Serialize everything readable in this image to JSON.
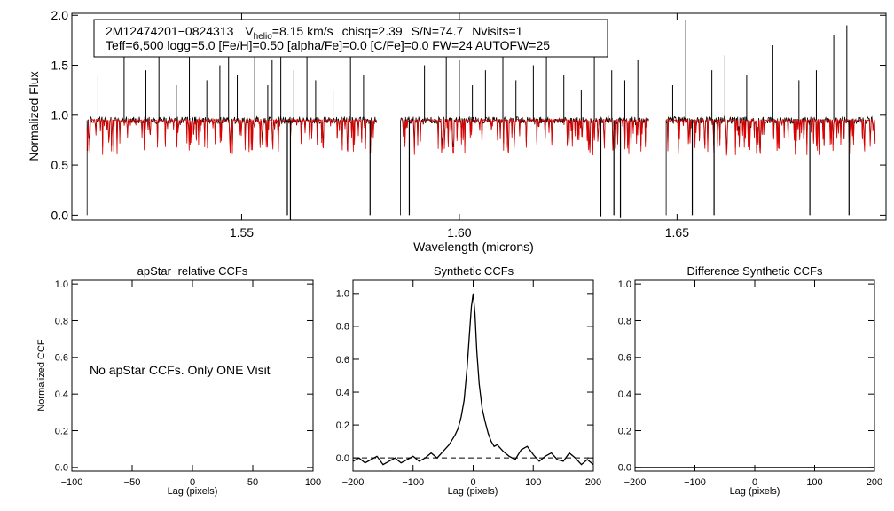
{
  "figure_caption": "",
  "chart_data": [
    {
      "id": "spectrum",
      "type": "line",
      "xlabel": "Wavelength (microns)",
      "ylabel": "Normalized Flux",
      "xlim": [
        1.511,
        1.698
      ],
      "ylim": [
        -0.05,
        2.02
      ],
      "xticks": [
        1.55,
        1.6,
        1.65
      ],
      "xtick_labels": [
        "1.55",
        "1.60",
        "1.65"
      ],
      "yticks": [
        0.0,
        0.5,
        1.0,
        1.5,
        2.0
      ],
      "ytick_labels": [
        "0.0",
        "0.5",
        "1.0",
        "1.5",
        "2.0"
      ],
      "chips": [
        [
          1.5145,
          1.581
        ],
        [
          1.5865,
          1.6435
        ],
        [
          1.6475,
          1.6955
        ]
      ],
      "annotation": {
        "star_id": "2M12474201−0824313",
        "vhelio_label": "V",
        "vhelio_subscript": "helio",
        "vhelio_value": "=8.15 km/s",
        "chisq": "chisq=2.39",
        "snr": "S/N=74.7",
        "nvisits": "Nvisits=1",
        "line2": "Teff=6,500 logg=5.0 [Fe/H]=0.50 [alpha/Fe]=0.0 [C/Fe]=0.0 FW=24 AUTOFW=25"
      },
      "series": [
        {
          "name": "observed",
          "color": "#000000",
          "continuum": 0.95,
          "noise": 0.035,
          "spikes_up": [
            1.517,
            1.523,
            1.528,
            1.531,
            1.535,
            1.538,
            1.542,
            1.545,
            1.547,
            1.549,
            1.553,
            1.556,
            1.557,
            1.559,
            1.562,
            1.565,
            1.567,
            1.571,
            1.575,
            1.578,
            1.592,
            1.597,
            1.6,
            1.603,
            1.606,
            1.61,
            1.613,
            1.617,
            1.62,
            1.624,
            1.628,
            1.631,
            1.635,
            1.638,
            1.641,
            1.649,
            1.652,
            1.658,
            1.661,
            1.666,
            1.672,
            1.678,
            1.682,
            1.686,
            1.689
          ],
          "spikes_up_height": [
            1.4,
            1.8,
            1.45,
            1.6,
            1.3,
            1.75,
            1.35,
            1.5,
            1.8,
            1.4,
            1.65,
            1.3,
            1.55,
            1.7,
            1.45,
            1.9,
            1.35,
            1.25,
            1.6,
            1.4,
            1.5,
            1.85,
            1.55,
            1.3,
            1.45,
            1.7,
            1.35,
            1.5,
            1.95,
            1.4,
            1.25,
            1.6,
            1.45,
            1.35,
            1.55,
            1.3,
            1.95,
            1.45,
            1.6,
            1.4,
            1.7,
            1.35,
            1.45,
            1.8,
            1.9
          ],
          "spikes_down": [
            1.5605,
            1.5612,
            1.5795,
            1.5885,
            1.6325,
            1.6355,
            1.637,
            1.6535,
            1.6585,
            1.6805,
            1.6895
          ],
          "spikes_down_depth": [
            0.0,
            -0.05,
            0.0,
            0.0,
            -0.02,
            0.0,
            -0.03,
            0.0,
            0.0,
            0.0,
            0.0
          ]
        },
        {
          "name": "synthetic",
          "color": "#e00000",
          "continuum": 0.95
        }
      ]
    },
    {
      "id": "apstar_ccf",
      "type": "line",
      "title": "apStar−relative CCFs",
      "xlabel": "Lag (pixels)",
      "ylabel": "Normalized CCF",
      "xlim": [
        -100,
        100
      ],
      "ylim": [
        -0.02,
        1.02
      ],
      "xticks": [
        -100,
        -50,
        0,
        50,
        100
      ],
      "xtick_labels": [
        "−100",
        "−50",
        "0",
        "50",
        "100"
      ],
      "yticks": [
        0.0,
        0.2,
        0.4,
        0.6,
        0.8,
        1.0
      ],
      "ytick_labels": [
        "0.0",
        "0.2",
        "0.4",
        "0.6",
        "0.8",
        "1.0"
      ],
      "message": "No apStar CCFs.  Only ONE Visit",
      "series": []
    },
    {
      "id": "synthetic_ccf",
      "type": "line",
      "title": "Synthetic CCFs",
      "xlabel": "Lag (pixels)",
      "ylabel": "",
      "xlim": [
        -200,
        200
      ],
      "ylim": [
        -0.08,
        1.08
      ],
      "xticks": [
        -200,
        -100,
        0,
        100,
        200
      ],
      "xtick_labels": [
        "−200",
        "−100",
        "0",
        "100",
        "200"
      ],
      "yticks": [
        0.0,
        0.2,
        0.4,
        0.6,
        0.8,
        1.0
      ],
      "ytick_labels": [
        "0.0",
        "0.2",
        "0.4",
        "0.6",
        "0.8",
        "1.0"
      ],
      "baseline": 0.0,
      "series": [
        {
          "name": "ccf",
          "color": "#000000",
          "x": [
            -200,
            -190,
            -180,
            -170,
            -160,
            -150,
            -140,
            -130,
            -120,
            -110,
            -100,
            -90,
            -80,
            -70,
            -60,
            -50,
            -45,
            -40,
            -35,
            -30,
            -25,
            -20,
            -15,
            -10,
            -6,
            -3,
            0,
            3,
            6,
            10,
            15,
            20,
            25,
            30,
            35,
            40,
            45,
            50,
            60,
            70,
            80,
            90,
            100,
            110,
            120,
            130,
            140,
            150,
            160,
            170,
            180,
            190,
            200
          ],
          "y": [
            -0.02,
            0.0,
            -0.03,
            -0.01,
            0.01,
            -0.04,
            -0.02,
            0.0,
            -0.03,
            -0.01,
            0.01,
            -0.02,
            0.0,
            0.03,
            0.0,
            0.04,
            0.06,
            0.08,
            0.11,
            0.14,
            0.18,
            0.25,
            0.35,
            0.55,
            0.76,
            0.92,
            1.0,
            0.88,
            0.65,
            0.45,
            0.3,
            0.22,
            0.15,
            0.1,
            0.07,
            0.08,
            0.06,
            0.04,
            0.01,
            -0.01,
            0.05,
            0.07,
            0.02,
            -0.02,
            0.01,
            0.03,
            -0.01,
            -0.02,
            0.03,
            0.0,
            -0.04,
            -0.01,
            -0.04
          ]
        }
      ]
    },
    {
      "id": "difference_ccf",
      "type": "line",
      "title": "Difference Synthetic CCFs",
      "xlabel": "Lag (pixels)",
      "ylabel": "",
      "xlim": [
        -200,
        200
      ],
      "ylim": [
        -0.02,
        1.02
      ],
      "xticks": [
        -200,
        -100,
        0,
        100,
        200
      ],
      "xtick_labels": [
        "−200",
        "−100",
        "0",
        "100",
        "200"
      ],
      "yticks": [
        0.0,
        0.2,
        0.4,
        0.6,
        0.8,
        1.0
      ],
      "ytick_labels": [
        "0.0",
        "0.2",
        "0.4",
        "0.6",
        "0.8",
        "1.0"
      ],
      "series": [
        {
          "name": "difference",
          "color": "#000000",
          "x": [
            -200,
            200
          ],
          "y": [
            0.0,
            0.0
          ]
        }
      ]
    }
  ]
}
